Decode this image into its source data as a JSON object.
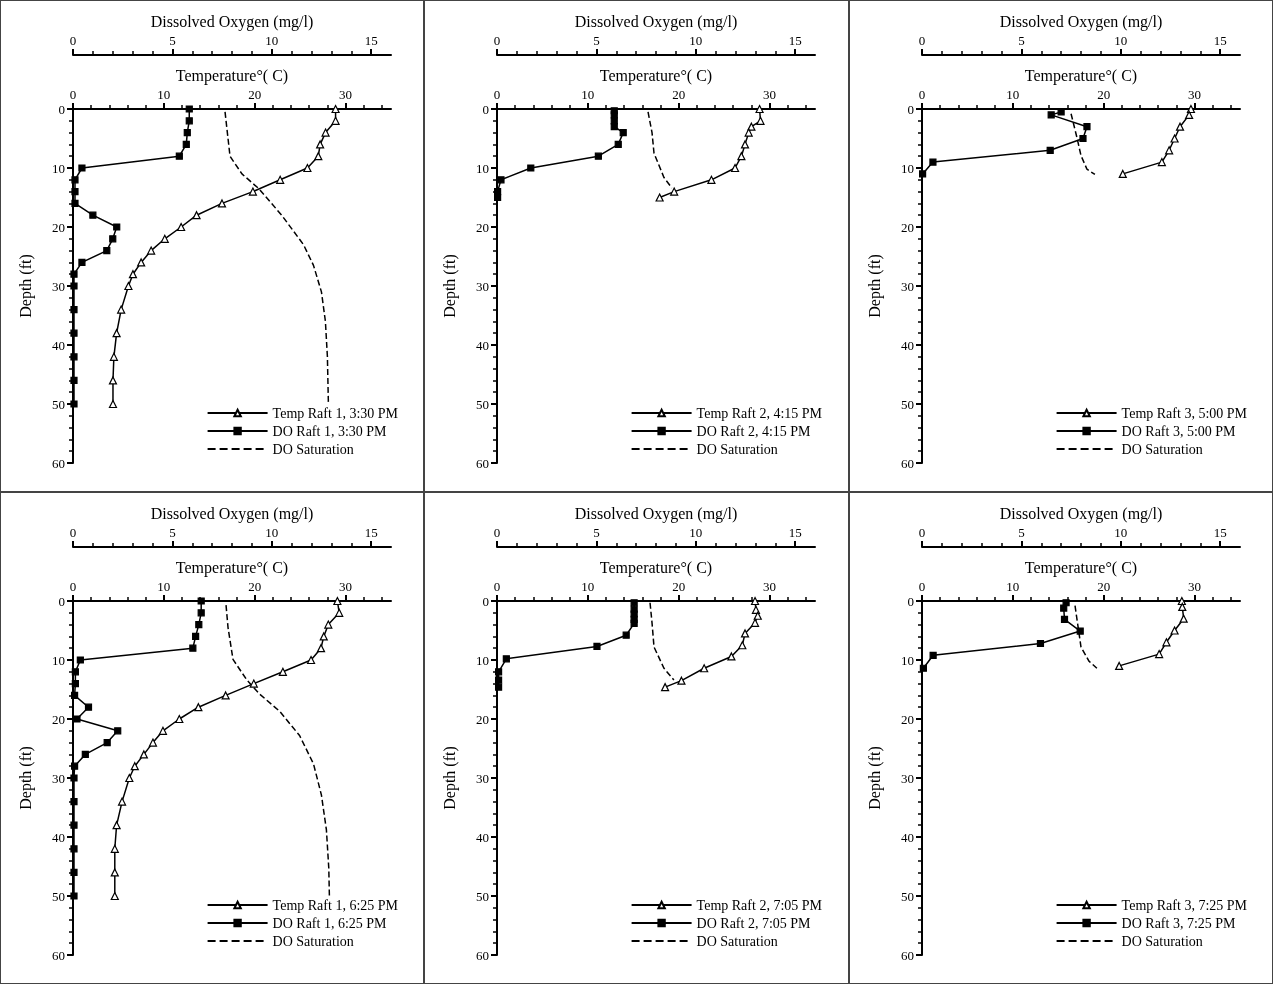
{
  "chart_data": [
    {
      "type": "line",
      "xlabel": "Temperature°( C)",
      "x2label": "Dissolved Oxygen (mg/l)",
      "ylabel": "Depth (ft)",
      "xlim": [
        0,
        35
      ],
      "xticks": [
        0,
        10,
        20,
        30
      ],
      "x2lim": [
        0,
        16
      ],
      "x2ticks": [
        0,
        5,
        10,
        15
      ],
      "ylim": [
        60,
        0
      ],
      "yticks": [
        0,
        10,
        20,
        30,
        40,
        50,
        60
      ],
      "legend": "bottom right",
      "series": [
        {
          "name": "Temp Raft 1, 3:30 PM",
          "color": "#000000",
          "marker": "triangle",
          "line_style": "solid",
          "x": [
            28.9,
            28.9,
            27.8,
            27.2,
            27.0,
            25.8,
            22.8,
            19.8,
            16.4,
            13.6,
            11.9,
            10.1,
            8.6,
            7.5,
            6.6,
            6.1,
            5.3,
            4.8,
            4.5,
            4.4,
            4.4
          ],
          "values": [
            0,
            2,
            4,
            6,
            8,
            10,
            12,
            14,
            16,
            18,
            20,
            22,
            24,
            26,
            28,
            30,
            34,
            38,
            42,
            46,
            50
          ]
        },
        {
          "name": "DO Raft 1, 3:30 PM",
          "color": "#000000",
          "marker": "square",
          "line_style": "solid",
          "axis": "x2",
          "x": [
            5.85,
            5.85,
            5.75,
            5.7,
            5.35,
            0.45,
            0.1,
            0.1,
            0.1,
            1.0,
            2.2,
            2.0,
            1.7,
            0.45,
            0.05,
            0.05,
            0.05,
            0.05,
            0.05,
            0.05,
            0.05
          ],
          "values": [
            0,
            2,
            4,
            6,
            8,
            10,
            12,
            14,
            16,
            18,
            20,
            22,
            24,
            26,
            28,
            30,
            34,
            38,
            42,
            46,
            50
          ]
        },
        {
          "name": "DO Saturation",
          "color": "#000000",
          "marker": "none",
          "line_style": "dashed",
          "axis": "x2",
          "x": [
            7.65,
            7.9,
            8.5,
            9.35,
            10.5,
            11.6,
            12.1,
            12.5,
            12.7,
            12.8,
            12.85
          ],
          "values": [
            0.5,
            8,
            11,
            13.5,
            18,
            23,
            26.5,
            31,
            36,
            42,
            50
          ]
        }
      ]
    },
    {
      "type": "line",
      "xlabel": "Temperature°( C)",
      "x2label": "Dissolved Oxygen (mg/l)",
      "ylabel": "Depth (ft)",
      "xlim": [
        0,
        35
      ],
      "xticks": [
        0,
        10,
        20,
        30
      ],
      "x2lim": [
        0,
        16
      ],
      "x2ticks": [
        0,
        5,
        10,
        15
      ],
      "ylim": [
        60,
        0
      ],
      "yticks": [
        0,
        10,
        20,
        30,
        40,
        50,
        60
      ],
      "legend": "bottom right",
      "series": [
        {
          "name": "Temp Raft 2, 4:15 PM",
          "color": "#000000",
          "marker": "triangle",
          "line_style": "solid",
          "x": [
            28.9,
            29.0,
            28.0,
            27.7,
            27.3,
            26.9,
            26.2,
            23.6,
            19.5,
            17.9
          ],
          "values": [
            0,
            2,
            3,
            4,
            6,
            8,
            10,
            12,
            14,
            15
          ]
        },
        {
          "name": "DO Raft 2, 4:15 PM",
          "color": "#000000",
          "marker": "square",
          "line_style": "solid",
          "axis": "x2",
          "x": [
            5.9,
            5.9,
            5.9,
            5.9,
            6.35,
            6.1,
            5.1,
            1.7,
            0.2,
            0.03,
            0.03
          ],
          "values": [
            0.3,
            1,
            2,
            3,
            4,
            6,
            8,
            10,
            12,
            14,
            15
          ]
        },
        {
          "name": "DO Saturation",
          "color": "#000000",
          "marker": "none",
          "line_style": "dashed",
          "axis": "x2",
          "x": [
            7.6,
            7.8,
            7.9,
            8.4,
            8.8
          ],
          "values": [
            0.5,
            4,
            7.5,
            11.6,
            13.4
          ]
        }
      ]
    },
    {
      "type": "line",
      "xlabel": "Temperature°( C)",
      "x2label": "Dissolved Oxygen (mg/l)",
      "ylabel": "Depth (ft)",
      "xlim": [
        0,
        35
      ],
      "xticks": [
        0,
        10,
        20,
        30
      ],
      "x2lim": [
        0,
        16
      ],
      "x2ticks": [
        0,
        5,
        10,
        15
      ],
      "ylim": [
        60,
        0
      ],
      "yticks": [
        0,
        10,
        20,
        30,
        40,
        50,
        60
      ],
      "legend": "bottom right",
      "series": [
        {
          "name": "Temp Raft 3, 5:00 PM",
          "color": "#000000",
          "marker": "triangle",
          "line_style": "solid",
          "x": [
            29.6,
            29.4,
            28.4,
            27.8,
            27.2,
            26.4,
            22.1
          ],
          "values": [
            0,
            1,
            3,
            5,
            7,
            9,
            11
          ]
        },
        {
          "name": "DO Raft 3, 5:00 PM",
          "color": "#000000",
          "marker": "square",
          "line_style": "solid",
          "axis": "x2",
          "x": [
            7.0,
            6.5,
            8.3,
            8.1,
            6.45,
            0.55,
            0.03
          ],
          "values": [
            0.5,
            1,
            3,
            5,
            7,
            9,
            11
          ]
        },
        {
          "name": "DO Saturation",
          "color": "#000000",
          "marker": "none",
          "line_style": "dashed",
          "axis": "x2",
          "x": [
            7.5,
            7.8,
            8.0,
            8.3,
            8.7
          ],
          "values": [
            0.8,
            4.9,
            7.9,
            10.2,
            11.1
          ]
        }
      ]
    },
    {
      "type": "line",
      "xlabel": "Temperature°( C)",
      "x2label": "Dissolved Oxygen (mg/l)",
      "ylabel": "Depth (ft)",
      "xlim": [
        0,
        35
      ],
      "xticks": [
        0,
        10,
        20,
        30
      ],
      "x2lim": [
        0,
        16
      ],
      "x2ticks": [
        0,
        5,
        10,
        15
      ],
      "ylim": [
        60,
        0
      ],
      "yticks": [
        0,
        10,
        20,
        30,
        40,
        50,
        60
      ],
      "legend": "bottom right",
      "series": [
        {
          "name": "Temp Raft 1, 6:25 PM",
          "color": "#000000",
          "marker": "triangle",
          "line_style": "solid",
          "x": [
            29.1,
            29.3,
            28.1,
            27.6,
            27.3,
            26.2,
            23.1,
            19.9,
            16.8,
            13.8,
            11.7,
            9.9,
            8.8,
            7.8,
            6.8,
            6.2,
            5.4,
            4.8,
            4.6,
            4.6,
            4.6
          ],
          "values": [
            0,
            2,
            4,
            6,
            8,
            10,
            12,
            14,
            16,
            18,
            20,
            22,
            24,
            26,
            28,
            30,
            34,
            38,
            42,
            46,
            50
          ]
        },
        {
          "name": "DO Raft 1, 6:25 PM",
          "color": "#000000",
          "marker": "square",
          "line_style": "solid",
          "axis": "x2",
          "x": [
            6.45,
            6.45,
            6.33,
            6.17,
            6.03,
            0.37,
            0.12,
            0.12,
            0.08,
            0.78,
            0.2,
            2.25,
            1.72,
            0.62,
            0.08,
            0.05,
            0.05,
            0.05,
            0.05,
            0.05,
            0.05
          ],
          "values": [
            0,
            2,
            4,
            6,
            8,
            10,
            12,
            14,
            16,
            18,
            20,
            22,
            24,
            26,
            28,
            30,
            34,
            38,
            42,
            46,
            50
          ]
        },
        {
          "name": "DO Saturation",
          "color": "#000000",
          "marker": "none",
          "line_style": "dashed",
          "axis": "x2",
          "x": [
            7.7,
            7.8,
            8.05,
            8.75,
            9.4,
            10.4,
            11.4,
            12.1,
            12.5,
            12.75,
            12.87,
            12.9
          ],
          "values": [
            0.7,
            4.5,
            9.9,
            13.4,
            15.8,
            18.7,
            22.8,
            27.6,
            32.9,
            38.8,
            45.3,
            50
          ]
        }
      ]
    },
    {
      "type": "line",
      "xlabel": "Temperature°( C)",
      "x2label": "Dissolved Oxygen (mg/l)",
      "ylabel": "Depth (ft)",
      "xlim": [
        0,
        35
      ],
      "xticks": [
        0,
        10,
        20,
        30
      ],
      "x2lim": [
        0,
        16
      ],
      "x2ticks": [
        0,
        5,
        10,
        15
      ],
      "ylim": [
        60,
        0
      ],
      "yticks": [
        0,
        10,
        20,
        30,
        40,
        50,
        60
      ],
      "legend": "bottom right",
      "series": [
        {
          "name": "Temp Raft 2, 7:05 PM",
          "color": "#000000",
          "marker": "triangle",
          "line_style": "solid",
          "x": [
            28.4,
            28.5,
            28.7,
            28.4,
            27.3,
            27.0,
            25.8,
            22.8,
            20.3,
            18.5
          ],
          "values": [
            0,
            1.5,
            2.5,
            3.7,
            5.5,
            7.5,
            9.4,
            11.4,
            13.5,
            14.6
          ]
        },
        {
          "name": "DO Raft 2, 7:05 PM",
          "color": "#000000",
          "marker": "square",
          "line_style": "solid",
          "axis": "x2",
          "x": [
            6.9,
            6.9,
            6.9,
            6.9,
            6.9,
            6.5,
            5.03,
            0.47,
            0.08,
            0.08,
            0.08
          ],
          "values": [
            0.3,
            1.4,
            2.2,
            3.1,
            3.8,
            5.8,
            7.7,
            9.8,
            12,
            13.4,
            14.6
          ]
        },
        {
          "name": "DO Saturation",
          "color": "#000000",
          "marker": "none",
          "line_style": "dashed",
          "axis": "x2",
          "x": [
            7.7,
            7.8,
            7.9,
            8.4,
            8.9
          ],
          "values": [
            0.3,
            3.7,
            7.8,
            11.4,
            13.4
          ]
        }
      ]
    },
    {
      "type": "line",
      "xlabel": "Temperature°( C)",
      "x2label": "Dissolved Oxygen (mg/l)",
      "ylabel": "Depth (ft)",
      "xlim": [
        0,
        35
      ],
      "xticks": [
        0,
        10,
        20,
        30
      ],
      "x2lim": [
        0,
        16
      ],
      "x2ticks": [
        0,
        5,
        10,
        15
      ],
      "ylim": [
        60,
        0
      ],
      "yticks": [
        0,
        10,
        20,
        30,
        40,
        50,
        60
      ],
      "legend": "bottom right",
      "series": [
        {
          "name": "Temp Raft 3, 7:25 PM",
          "color": "#000000",
          "marker": "triangle",
          "line_style": "solid",
          "x": [
            28.6,
            28.65,
            28.8,
            27.8,
            26.9,
            26.1,
            21.7
          ],
          "values": [
            0,
            1,
            3,
            5,
            7,
            9,
            11
          ]
        },
        {
          "name": "DO Raft 3, 7:25 PM",
          "color": "#000000",
          "marker": "square",
          "line_style": "solid",
          "axis": "x2",
          "x": [
            7.25,
            7.13,
            7.17,
            7.96,
            5.96,
            0.56,
            0.07
          ],
          "values": [
            0.3,
            1.2,
            3.1,
            5.1,
            7.2,
            9.2,
            11.4
          ]
        },
        {
          "name": "DO Saturation",
          "color": "#000000",
          "marker": "none",
          "line_style": "dashed",
          "axis": "x2",
          "x": [
            7.7,
            7.75,
            8.0,
            8.4,
            8.8
          ],
          "values": [
            0.8,
            2,
            7.8,
            10.2,
            11.4
          ]
        }
      ]
    }
  ]
}
